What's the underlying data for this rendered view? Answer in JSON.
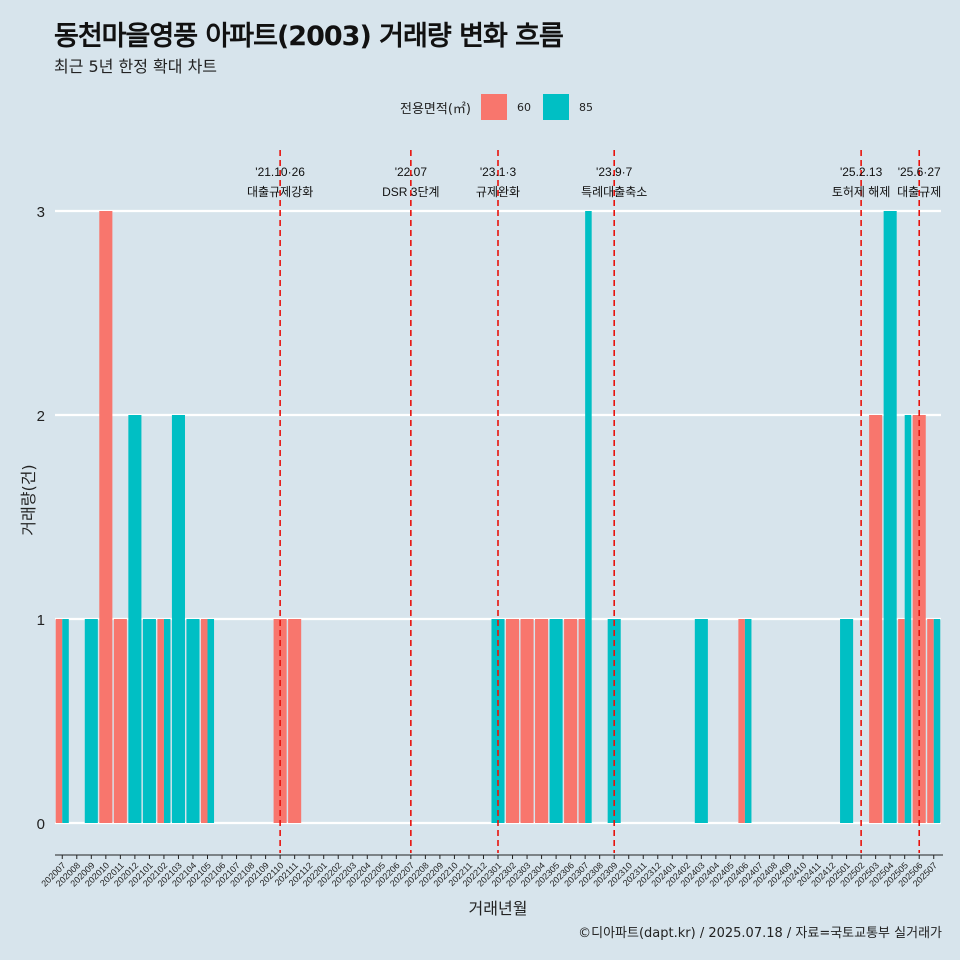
{
  "title": "동천마을영풍 아파트(2003) 거래량 변화 흐름",
  "subtitle": "최근 5년 한정 확대 차트",
  "caption": "©디아파트(dapt.kr) / 2025.07.18 / 자료=국토교통부 실거래가",
  "legend": {
    "title": "전용면적(㎡)"
  },
  "colors": {
    "background": "#d7e4ec",
    "s60": "#f8766d",
    "s85": "#00bfc4",
    "event_line": "#e8120c",
    "grid": "#ffffff"
  },
  "chart_data": {
    "type": "bar",
    "xlabel": "거래년월",
    "ylabel": "거래량(건)",
    "ylim": [
      0,
      3
    ],
    "yticks": [
      0,
      1,
      2,
      3
    ],
    "grid": true,
    "legend_position": "top",
    "categories": [
      "202007",
      "202008",
      "202009",
      "202010",
      "202011",
      "202012",
      "202101",
      "202102",
      "202103",
      "202104",
      "202105",
      "202106",
      "202107",
      "202108",
      "202109",
      "202110",
      "202111",
      "202112",
      "202201",
      "202202",
      "202203",
      "202204",
      "202205",
      "202206",
      "202207",
      "202208",
      "202209",
      "202210",
      "202211",
      "202212",
      "202301",
      "202302",
      "202303",
      "202304",
      "202305",
      "202306",
      "202307",
      "202308",
      "202309",
      "202310",
      "202311",
      "202312",
      "202401",
      "202402",
      "202403",
      "202404",
      "202405",
      "202406",
      "202407",
      "202408",
      "202409",
      "202410",
      "202411",
      "202412",
      "202501",
      "202502",
      "202503",
      "202504",
      "202505",
      "202506",
      "202507"
    ],
    "series": [
      {
        "name": "60",
        "color": "#f8766d",
        "values": [
          1,
          0,
          0,
          3,
          1,
          0,
          0,
          1,
          0,
          0,
          1,
          0,
          0,
          0,
          0,
          1,
          1,
          0,
          0,
          0,
          0,
          0,
          0,
          0,
          0,
          0,
          0,
          0,
          0,
          0,
          0,
          1,
          1,
          1,
          0,
          1,
          1,
          0,
          0,
          0,
          0,
          0,
          0,
          0,
          0,
          0,
          0,
          1,
          0,
          0,
          0,
          0,
          0,
          0,
          0,
          0,
          2,
          0,
          1,
          2,
          1
        ]
      },
      {
        "name": "85",
        "color": "#00bfc4",
        "values": [
          1,
          0,
          1,
          0,
          0,
          2,
          1,
          1,
          2,
          1,
          1,
          0,
          0,
          0,
          0,
          0,
          0,
          0,
          0,
          0,
          0,
          0,
          0,
          0,
          0,
          0,
          0,
          0,
          0,
          0,
          1,
          0,
          0,
          0,
          1,
          0,
          3,
          0,
          1,
          0,
          0,
          0,
          0,
          0,
          1,
          0,
          0,
          1,
          0,
          0,
          0,
          0,
          0,
          0,
          1,
          0,
          0,
          3,
          2,
          0,
          1
        ]
      }
    ],
    "annotations": [
      {
        "month": "202110",
        "date": "'21.10·26",
        "label": "대출규제강화"
      },
      {
        "month": "202207",
        "date": "'22.07",
        "label": "DSR 3단계"
      },
      {
        "month": "202301",
        "date": "'23.1·3",
        "label": "규제완화"
      },
      {
        "month": "202309",
        "date": "'23.9·7",
        "label": "특례대출축소"
      },
      {
        "month": "202502",
        "date": "'25.2.13",
        "label": "토허제 해제"
      },
      {
        "month": "202506",
        "date": "'25.6·27",
        "label": "대출규제"
      }
    ]
  }
}
